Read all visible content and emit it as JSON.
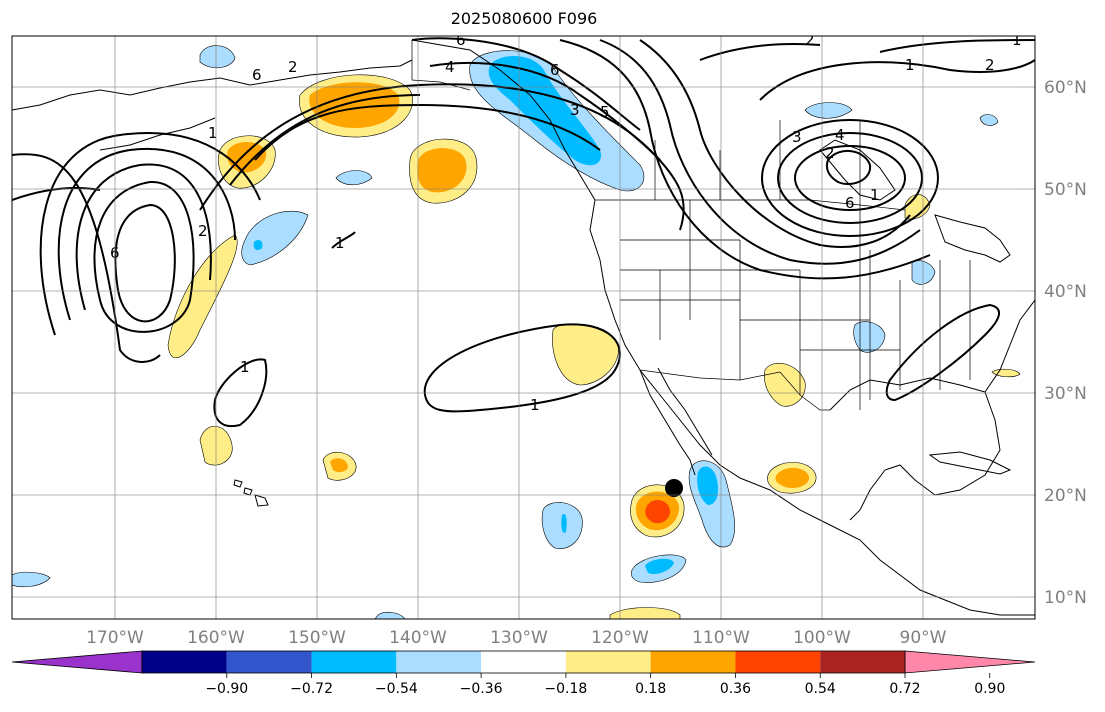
{
  "title": "2025080600 F096",
  "lon_labels": [
    "170°W",
    "160°W",
    "150°W",
    "140°W",
    "130°W",
    "120°W",
    "110°W",
    "100°W",
    "90°W"
  ],
  "lat_labels": [
    "60°N",
    "50°N",
    "40°N",
    "30°N",
    "20°N",
    "10°N"
  ],
  "colorbar": {
    "colors": [
      "#9933cc",
      "#000088",
      "#3355cc",
      "#00bbff",
      "#aaddff",
      "#ffffff",
      "#ffee88",
      "#ffa500",
      "#ff4400",
      "#aa2222",
      "#ff88aa"
    ],
    "ticks": [
      "−0.90",
      "−0.72",
      "−0.54",
      "−0.36",
      "−0.18",
      "0.18",
      "0.36",
      "0.54",
      "0.72",
      "0.90"
    ]
  },
  "contour_labels": [
    "6",
    "4",
    "6",
    "3",
    "5",
    "6",
    "2",
    "1",
    "2",
    "2",
    "1",
    "3",
    "4",
    "6",
    "2",
    "1",
    "1",
    "6",
    "2",
    "1",
    "1",
    "1"
  ],
  "marker": "storm-position-dot"
}
